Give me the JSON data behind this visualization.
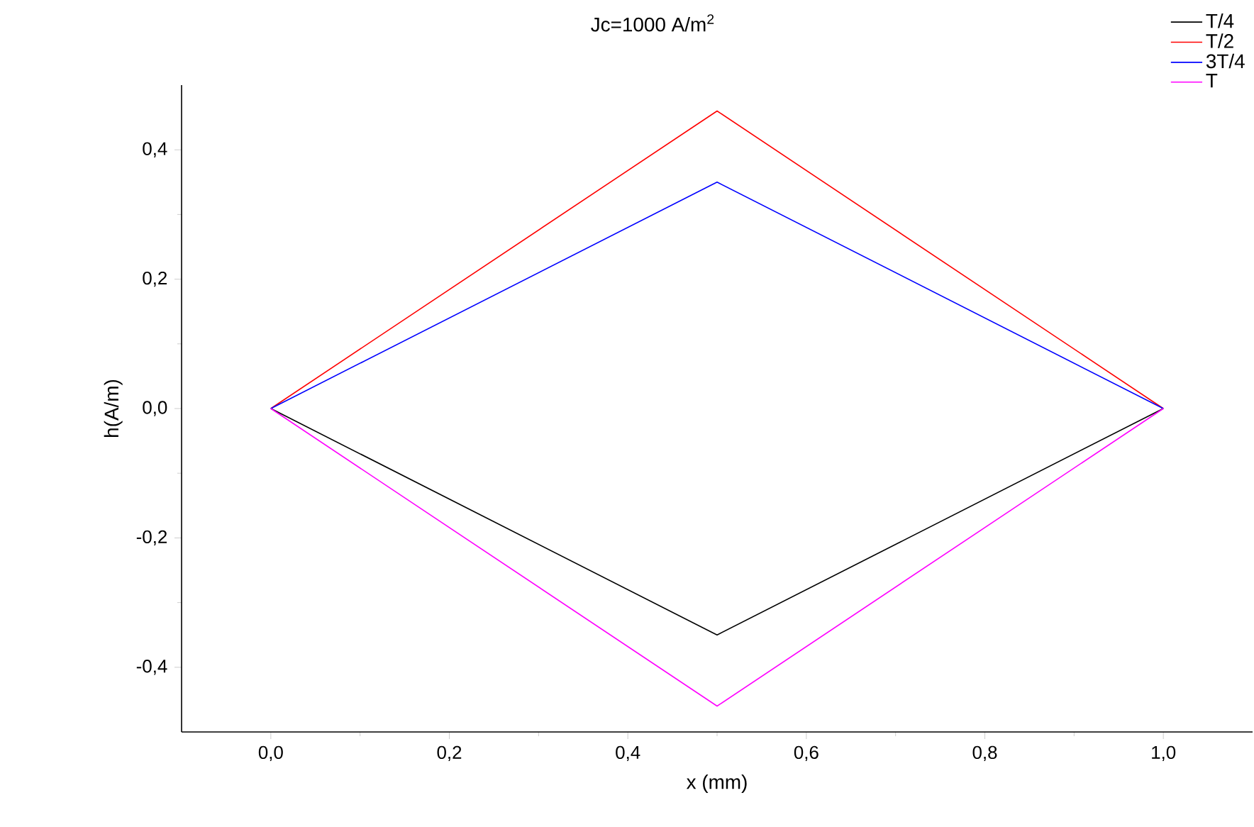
{
  "chart_data": {
    "type": "line",
    "title": "Jc=1000 A/m$^{2}$",
    "xlabel": "x (mm)",
    "ylabel": "h(A/m)",
    "xlim": [
      -0.1,
      1.1
    ],
    "ylim": [
      -0.5,
      0.5
    ],
    "xticks": [
      {
        "value": 0,
        "label": "0,0"
      },
      {
        "value": 0.2,
        "label": "0,2"
      },
      {
        "value": 0.4,
        "label": "0,4"
      },
      {
        "value": 0.6,
        "label": "0,6"
      },
      {
        "value": 0.8,
        "label": "0,8"
      },
      {
        "value": 1,
        "label": "1,0"
      }
    ],
    "yticks": [
      {
        "value": -0.4,
        "label": "-0,4"
      },
      {
        "value": -0.2,
        "label": "-0,2"
      },
      {
        "value": 0,
        "label": "0,0"
      },
      {
        "value": 0.2,
        "label": "0,2"
      },
      {
        "value": 0.4,
        "label": "0,4"
      }
    ],
    "x": [
      0,
      0.5,
      1
    ],
    "series": [
      {
        "name": "T/4",
        "color": "#000000",
        "values": [
          0,
          -0.35,
          0
        ]
      },
      {
        "name": "T/2",
        "color": "#ff0000",
        "values": [
          0,
          0.46,
          0
        ]
      },
      {
        "name": "3T/4",
        "color": "#0000ff",
        "values": [
          0,
          0.35,
          0
        ]
      },
      {
        "name": "T",
        "color": "#ff00ff",
        "values": [
          0,
          -0.46,
          0
        ]
      }
    ],
    "legend": "top right",
    "grid": false,
    "marker": "none",
    "line_style": "solid"
  }
}
